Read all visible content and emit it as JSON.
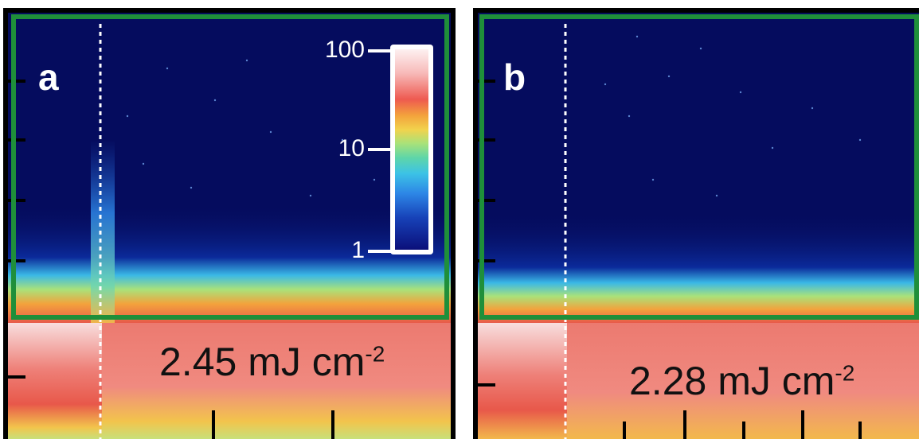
{
  "panels": [
    {
      "label": "a",
      "fluence_value": "2.45 mJ cm",
      "fluence_exponent": "-2"
    },
    {
      "label": "b",
      "fluence_value": "2.28 mJ cm",
      "fluence_exponent": "-2"
    }
  ],
  "colorbar": {
    "ticks": [
      "100",
      "10",
      "1"
    ]
  },
  "colors": {
    "frame": "#000000",
    "highlight_box": "#1f8f3a",
    "background": "#050c5e",
    "marker_line": "#ffffff"
  }
}
